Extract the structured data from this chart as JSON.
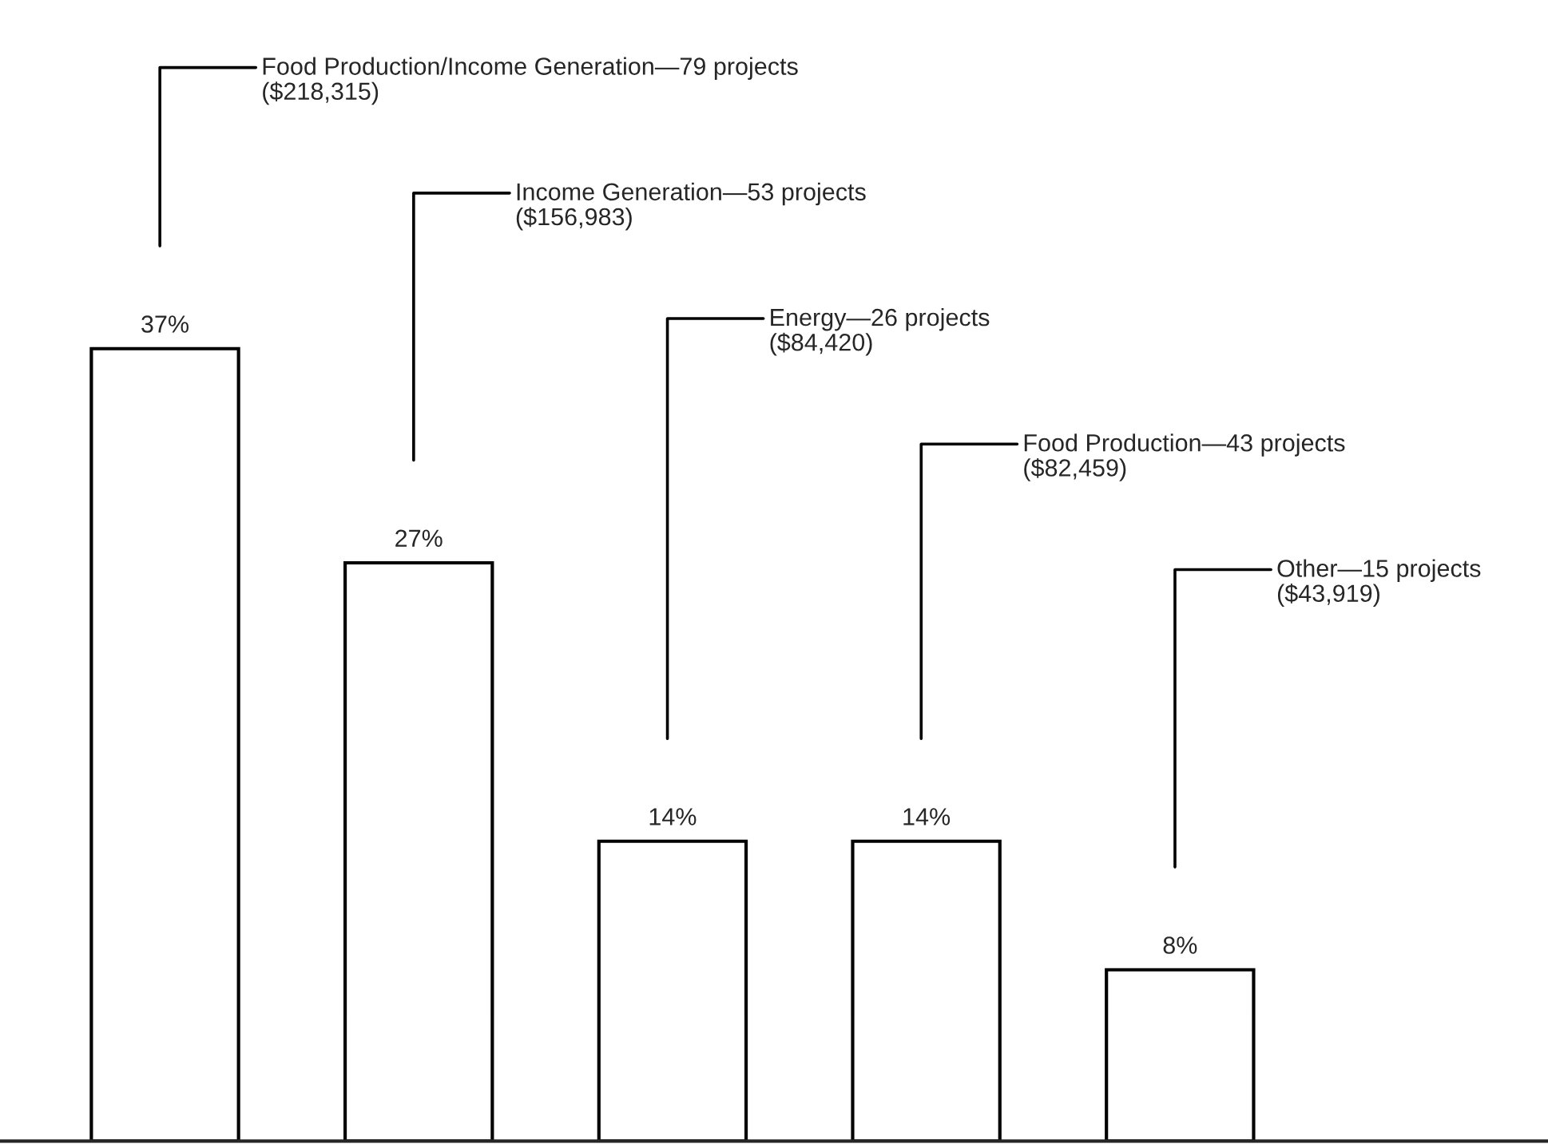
{
  "chart_data": {
    "type": "bar",
    "categories": [
      null,
      null,
      null,
      null,
      null
    ],
    "values": [
      37,
      27,
      14,
      14,
      8
    ],
    "value_labels": [
      "37%",
      "27%",
      "14%",
      "14%",
      "8%"
    ],
    "color": "#ffffff",
    "annotations": [
      "Food Production/Income Generation—79 projects\n($218,315)",
      "Income Generation—53 projects\n($156,983)",
      "Energy—26 projects\n($84,420)",
      "Food Production—43 projects\n($82,459)",
      "Other—15 projects\n($43,919)"
    ]
  }
}
